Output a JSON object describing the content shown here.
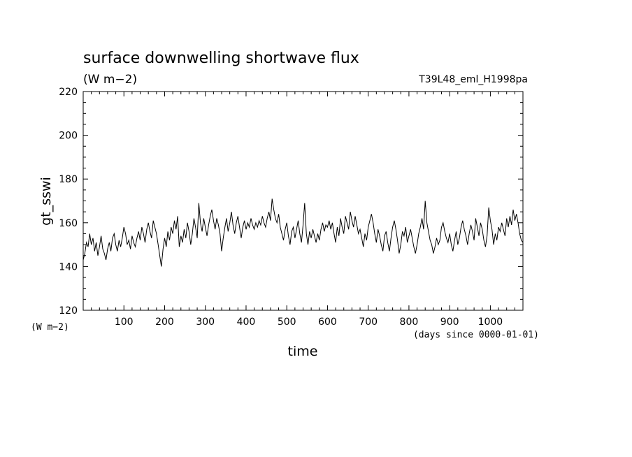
{
  "chart_data": {
    "type": "line",
    "title": "surface downwelling shortwave flux",
    "subtitle": "(W m−2)",
    "run_label": "T39L48_eml_H1998pa",
    "xlabel": "time",
    "x_units_label": "(days since 0000-01-01)",
    "ylabel": "gt_sswi",
    "y_units_label": "(W m−2)",
    "xlim": [
      0,
      1080
    ],
    "ylim": [
      120,
      220
    ],
    "x_ticks": [
      100,
      200,
      300,
      400,
      500,
      600,
      700,
      800,
      900,
      1000
    ],
    "y_ticks": [
      120,
      140,
      160,
      180,
      200,
      220
    ],
    "grid": false,
    "line_color": "#000000",
    "series": [
      {
        "x": [
          0,
          4,
          8,
          12,
          16,
          20,
          24,
          28,
          32,
          36,
          40,
          44,
          48,
          52,
          56,
          60,
          64,
          68,
          72,
          76,
          80,
          84,
          88,
          92,
          96,
          100,
          104,
          108,
          112,
          116,
          120,
          124,
          128,
          132,
          136,
          140,
          144,
          148,
          152,
          156,
          160,
          164,
          168,
          172,
          176,
          180,
          184,
          188,
          192,
          196,
          200,
          204,
          208,
          212,
          216,
          220,
          224,
          228,
          232,
          236,
          240,
          244,
          248,
          252,
          256,
          260,
          264,
          268,
          272,
          276,
          280,
          284,
          288,
          292,
          296,
          300,
          304,
          308,
          312,
          316,
          320,
          324,
          328,
          332,
          336,
          340,
          344,
          348,
          352,
          356,
          360,
          364,
          368,
          372,
          376,
          380,
          384,
          388,
          392,
          396,
          400,
          404,
          408,
          412,
          416,
          420,
          424,
          428,
          432,
          436,
          440,
          444,
          448,
          452,
          456,
          460,
          464,
          468,
          472,
          476,
          480,
          484,
          488,
          492,
          496,
          500,
          504,
          508,
          512,
          516,
          520,
          524,
          528,
          532,
          536,
          540,
          544,
          548,
          552,
          556,
          560,
          564,
          568,
          572,
          576,
          580,
          584,
          588,
          592,
          596,
          600,
          604,
          608,
          612,
          616,
          620,
          624,
          628,
          632,
          636,
          640,
          644,
          648,
          652,
          656,
          660,
          664,
          668,
          672,
          676,
          680,
          684,
          688,
          692,
          696,
          700,
          704,
          708,
          712,
          716,
          720,
          724,
          728,
          732,
          736,
          740,
          744,
          748,
          752,
          756,
          760,
          764,
          768,
          772,
          776,
          780,
          784,
          788,
          792,
          796,
          800,
          804,
          808,
          812,
          816,
          820,
          824,
          828,
          832,
          836,
          840,
          844,
          848,
          852,
          856,
          860,
          864,
          868,
          872,
          876,
          880,
          884,
          888,
          892,
          896,
          900,
          904,
          908,
          912,
          916,
          920,
          924,
          928,
          932,
          936,
          940,
          944,
          948,
          952,
          956,
          960,
          964,
          968,
          972,
          976,
          980,
          984,
          988,
          992,
          996,
          1000,
          1004,
          1008,
          1012,
          1016,
          1020,
          1024,
          1028,
          1032,
          1036,
          1040,
          1044,
          1048,
          1052,
          1056,
          1060,
          1064,
          1068,
          1072,
          1076,
          1080
        ],
        "y": [
          143,
          146,
          151,
          149,
          155,
          150,
          153,
          147,
          151,
          145,
          149,
          154,
          148,
          146,
          143,
          148,
          151,
          147,
          153,
          155,
          150,
          147,
          152,
          149,
          153,
          158,
          155,
          150,
          152,
          148,
          154,
          151,
          149,
          153,
          156,
          152,
          158,
          155,
          151,
          157,
          160,
          156,
          153,
          161,
          158,
          155,
          150,
          145,
          140,
          148,
          153,
          149,
          156,
          152,
          158,
          155,
          161,
          157,
          163,
          149,
          154,
          151,
          157,
          153,
          160,
          156,
          150,
          155,
          162,
          158,
          153,
          169,
          160,
          156,
          162,
          158,
          154,
          159,
          163,
          166,
          161,
          157,
          162,
          159,
          155,
          147,
          153,
          158,
          162,
          156,
          160,
          165,
          159,
          155,
          160,
          163,
          158,
          153,
          158,
          161,
          157,
          160,
          158,
          162,
          159,
          157,
          160,
          158,
          161,
          159,
          163,
          160,
          158,
          162,
          165,
          161,
          171,
          166,
          162,
          160,
          164,
          158,
          155,
          152,
          157,
          160,
          154,
          150,
          156,
          158,
          153,
          157,
          161,
          155,
          151,
          159,
          169,
          155,
          150,
          156,
          153,
          157,
          154,
          151,
          155,
          152,
          157,
          160,
          156,
          159,
          158,
          161,
          157,
          160,
          155,
          151,
          158,
          154,
          162,
          158,
          155,
          163,
          160,
          157,
          165,
          161,
          158,
          163,
          159,
          155,
          157,
          153,
          149,
          155,
          152,
          158,
          161,
          164,
          160,
          155,
          151,
          157,
          154,
          150,
          147,
          154,
          156,
          151,
          147,
          153,
          158,
          161,
          157,
          152,
          146,
          150,
          156,
          154,
          158,
          151,
          154,
          157,
          153,
          149,
          146,
          150,
          155,
          158,
          162,
          157,
          170,
          160,
          156,
          152,
          150,
          146,
          149,
          153,
          150,
          152,
          158,
          160,
          156,
          153,
          151,
          155,
          150,
          147,
          152,
          156,
          150,
          153,
          158,
          161,
          157,
          154,
          150,
          155,
          159,
          156,
          152,
          162,
          158,
          154,
          160,
          157,
          152,
          149,
          154,
          167,
          161,
          157,
          150,
          155,
          152,
          158,
          156,
          160,
          157,
          154,
          162,
          158,
          163,
          159,
          166,
          161,
          164,
          160,
          155,
          152,
          151
        ]
      }
    ]
  }
}
